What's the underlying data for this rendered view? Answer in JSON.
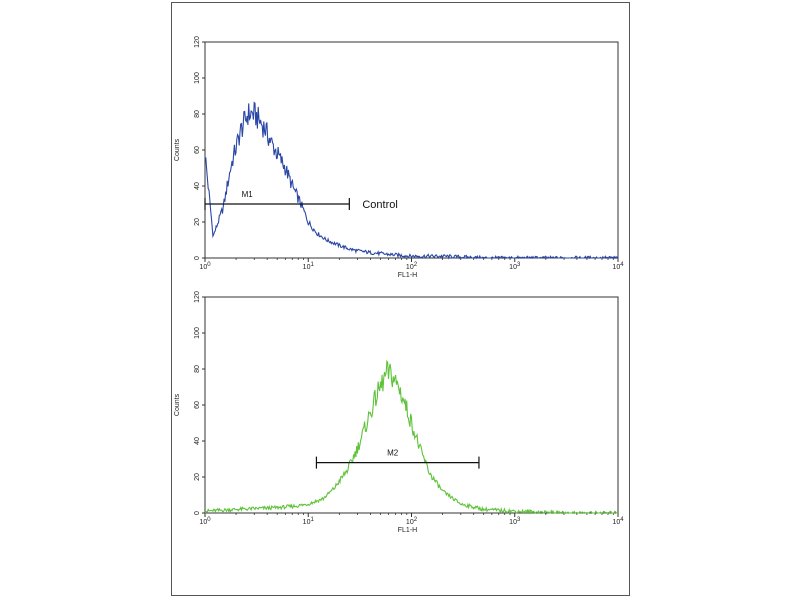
{
  "chart_data": [
    {
      "type": "line",
      "xscale": "log",
      "xlim": [
        1,
        10000
      ],
      "ylim": [
        0,
        120
      ],
      "yticks": [
        0,
        20,
        40,
        60,
        80,
        100,
        120
      ],
      "xticks": [
        1,
        10,
        100,
        1000,
        10000
      ],
      "xlabel": "FL1-H",
      "ylabel": "Counts",
      "color": "#2b47a6",
      "x": [
        1,
        1.2,
        1.5,
        1.8,
        2.2,
        2.6,
        3.0,
        3.4,
        3.8,
        4.3,
        5.0,
        6.0,
        7.0,
        8.5,
        10,
        12,
        15,
        20,
        25,
        30,
        40,
        60,
        100,
        200,
        500,
        1000,
        3000,
        10000
      ],
      "y": [
        58,
        12,
        28,
        52,
        70,
        80,
        80,
        76,
        72,
        65,
        58,
        50,
        40,
        30,
        20,
        14,
        10,
        7,
        5,
        4,
        3,
        2,
        1,
        1,
        0,
        0,
        0,
        0
      ],
      "marker": {
        "label": "M1",
        "range": [
          1,
          25
        ],
        "y": 30
      },
      "annotation": "Control"
    },
    {
      "type": "line",
      "xscale": "log",
      "xlim": [
        1,
        10000
      ],
      "ylim": [
        0,
        120
      ],
      "yticks": [
        0,
        20,
        40,
        60,
        80,
        100,
        120
      ],
      "xticks": [
        1,
        10,
        100,
        1000,
        10000
      ],
      "xlabel": "FL1-H",
      "ylabel": "Counts",
      "color": "#5fc23a",
      "x": [
        1,
        2,
        5,
        8,
        10,
        14,
        18,
        24,
        30,
        38,
        45,
        52,
        58,
        65,
        75,
        85,
        100,
        120,
        150,
        200,
        300,
        500,
        1000,
        3000,
        10000
      ],
      "y": [
        1,
        2,
        3,
        4,
        5,
        8,
        14,
        24,
        36,
        52,
        64,
        72,
        78,
        76,
        70,
        62,
        50,
        36,
        22,
        12,
        5,
        2,
        1,
        0,
        0
      ],
      "marker": {
        "label": "M2",
        "range": [
          12,
          450
        ],
        "y": 28
      },
      "annotation": ""
    }
  ]
}
